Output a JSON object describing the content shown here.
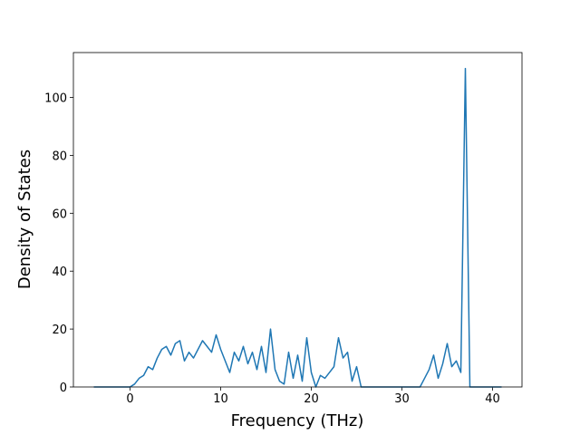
{
  "chart_data": {
    "type": "line",
    "x_label": "Frequency (THz)",
    "y_label": "Density of States",
    "x": [
      -4,
      -3.5,
      -3,
      -2.5,
      -2,
      -1.5,
      -1,
      -0.5,
      0,
      0.5,
      1,
      1.5,
      2,
      2.5,
      3,
      3.5,
      4,
      4.5,
      5,
      5.5,
      6,
      6.5,
      7,
      7.5,
      8,
      8.5,
      9,
      9.5,
      10,
      10.5,
      11,
      11.5,
      12,
      12.5,
      13,
      13.5,
      14,
      14.5,
      15,
      15.5,
      16,
      16.5,
      17,
      17.5,
      18,
      18.5,
      19,
      19.5,
      20,
      20.5,
      21,
      21.5,
      22,
      22.5,
      23,
      23.5,
      24,
      24.5,
      25,
      25.5,
      26,
      26.5,
      27,
      27.5,
      28,
      28.5,
      29,
      29.5,
      30,
      30.5,
      31,
      31.5,
      32,
      32.5,
      33,
      33.5,
      34,
      34.5,
      35,
      35.5,
      36,
      36.5,
      37,
      37.5,
      38,
      38.5,
      39,
      39.5,
      40,
      40.5,
      41
    ],
    "series": [
      {
        "color": "#1f77b4",
        "values": [
          0,
          0,
          0,
          0,
          0,
          0,
          0,
          0,
          0,
          1,
          3,
          4,
          7,
          6,
          10,
          13,
          14,
          11,
          15,
          16,
          9,
          12,
          10,
          13,
          16,
          14,
          12,
          18,
          13,
          9,
          5,
          12,
          9,
          14,
          8,
          12,
          6,
          14,
          5,
          20,
          6,
          2,
          1,
          12,
          3,
          11,
          2,
          17,
          5,
          0,
          4,
          3,
          5,
          7,
          17,
          10,
          12,
          2,
          7,
          0,
          0,
          0,
          0,
          0,
          0,
          0,
          0,
          0,
          0,
          0,
          0,
          0,
          0,
          3,
          6,
          11,
          3,
          8,
          15,
          7,
          9,
          5,
          110,
          0,
          0,
          0,
          0,
          0,
          0,
          0,
          0
        ]
      }
    ],
    "xlim": [
      -6.25,
      43.25
    ],
    "ylim": [
      0,
      115.5
    ],
    "xticks": [
      0,
      10,
      20,
      30,
      40
    ],
    "yticks": [
      0,
      20,
      40,
      60,
      80,
      100
    ]
  }
}
